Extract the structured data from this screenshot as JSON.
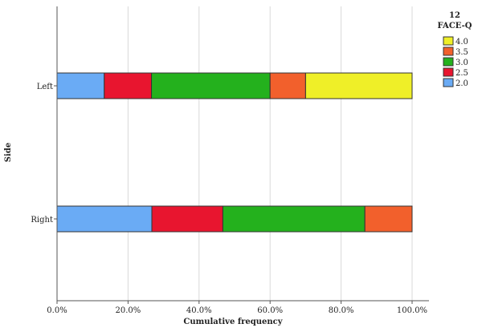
{
  "chart_data": {
    "type": "bar",
    "orientation": "horizontal",
    "stacked": true,
    "xlabel": "Cumulative frequency",
    "ylabel": "Side",
    "xlim": [
      0,
      100
    ],
    "x_ticks": [
      "0.0%",
      "20.0%",
      "40.0%",
      "60.0%",
      "80.0%",
      "100.0%"
    ],
    "categories": [
      "Left",
      "Right"
    ],
    "series": [
      {
        "name": "2.0",
        "color": "#6aabf5",
        "values": [
          13.3,
          26.7
        ]
      },
      {
        "name": "2.5",
        "color": "#e8152f",
        "values": [
          13.3,
          20.0
        ]
      },
      {
        "name": "3.0",
        "color": "#24b11d",
        "values": [
          33.4,
          40.0
        ]
      },
      {
        "name": "3.5",
        "color": "#f2602c",
        "values": [
          10.0,
          13.3
        ]
      },
      {
        "name": "4.0",
        "color": "#efef28",
        "values": [
          30.0,
          0
        ]
      }
    ],
    "legend": {
      "title_line1": "12",
      "title_line2": "FACE-Q",
      "order": [
        "4.0",
        "3.5",
        "3.0",
        "2.5",
        "2.0"
      ],
      "position": "right"
    },
    "grid": "vertical"
  }
}
